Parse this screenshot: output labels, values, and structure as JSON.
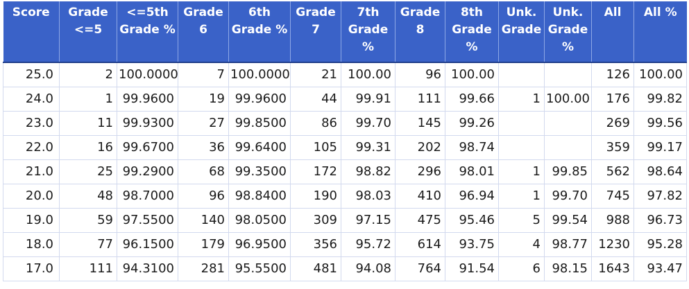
{
  "table": {
    "headers": [
      "Score",
      "Grade <=5",
      "<=5th Grade %",
      "Grade 6",
      "6th Grade %",
      "Grade 7",
      "7th Grade %",
      "Grade 8",
      "8th Grade %",
      "Unk. Grade",
      "Unk. Grade %",
      "All",
      "All %"
    ],
    "rows": [
      [
        "25.0",
        "2",
        "100.0000",
        "7",
        "100.0000",
        "21",
        "100.00",
        "96",
        "100.00",
        "",
        "",
        "126",
        "100.00"
      ],
      [
        "24.0",
        "1",
        "99.9600",
        "19",
        "99.9600",
        "44",
        "99.91",
        "111",
        "99.66",
        "1",
        "100.00",
        "176",
        "99.82"
      ],
      [
        "23.0",
        "11",
        "99.9300",
        "27",
        "99.8500",
        "86",
        "99.70",
        "145",
        "99.26",
        "",
        "",
        "269",
        "99.56"
      ],
      [
        "22.0",
        "16",
        "99.6700",
        "36",
        "99.6400",
        "105",
        "99.31",
        "202",
        "98.74",
        "",
        "",
        "359",
        "99.17"
      ],
      [
        "21.0",
        "25",
        "99.2900",
        "68",
        "99.3500",
        "172",
        "98.82",
        "296",
        "98.01",
        "1",
        "99.85",
        "562",
        "98.64"
      ],
      [
        "20.0",
        "48",
        "98.7000",
        "96",
        "98.8400",
        "190",
        "98.03",
        "410",
        "96.94",
        "1",
        "99.70",
        "745",
        "97.82"
      ],
      [
        "19.0",
        "59",
        "97.5500",
        "140",
        "98.0500",
        "309",
        "97.15",
        "475",
        "95.46",
        "5",
        "99.54",
        "988",
        "96.73"
      ],
      [
        "18.0",
        "77",
        "96.1500",
        "179",
        "96.9500",
        "356",
        "95.72",
        "614",
        "93.75",
        "4",
        "98.77",
        "1230",
        "95.28"
      ],
      [
        "17.0",
        "111",
        "94.3100",
        "281",
        "95.5500",
        "481",
        "94.08",
        "764",
        "91.54",
        "6",
        "98.15",
        "1643",
        "93.47"
      ]
    ]
  },
  "colors": {
    "header_bg": "#3a62c8",
    "header_text": "#ffffff",
    "grid": "#d2d9ee"
  }
}
